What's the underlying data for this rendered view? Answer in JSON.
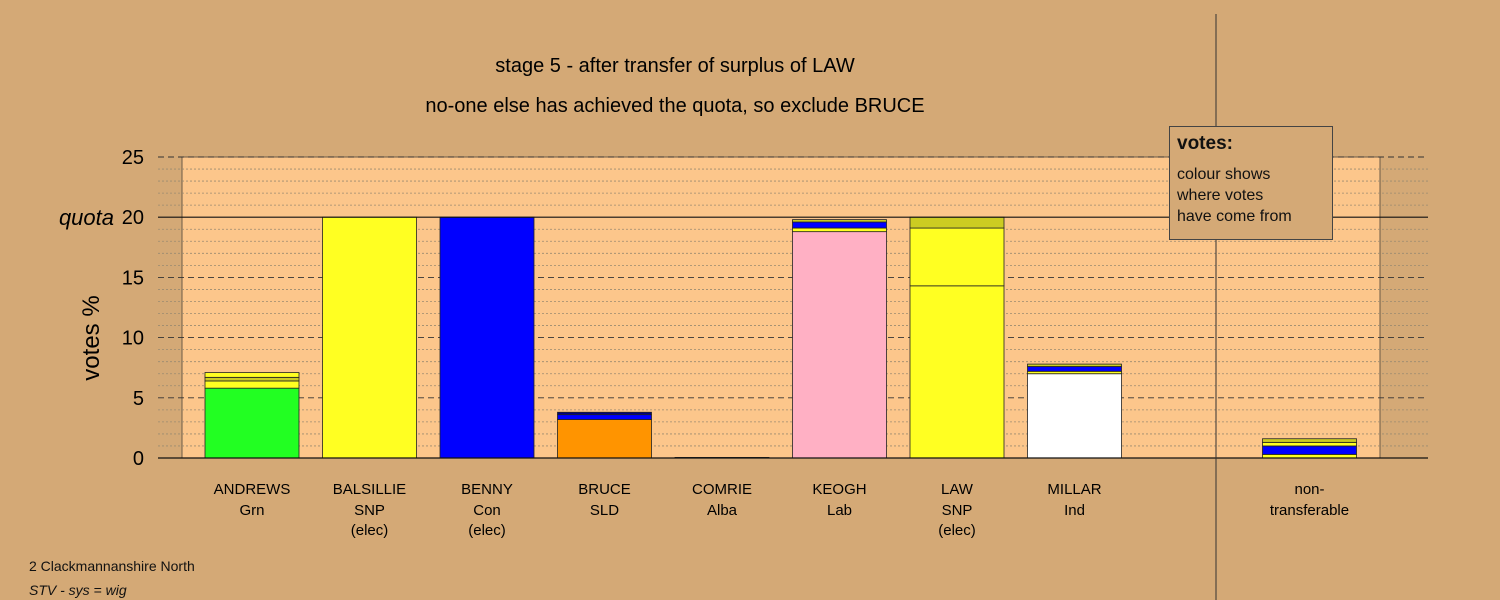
{
  "chart_data": {
    "type": "bar",
    "stacked": true,
    "title": "stage 5 - after transfer of surplus of LAW",
    "subtitle": "no-one else has achieved the quota, so exclude BRUCE",
    "ylabel": "votes %",
    "ylim": [
      0,
      25
    ],
    "yticks": [
      0,
      5,
      10,
      15,
      20,
      25
    ],
    "quota": 20,
    "quota_label": "quota",
    "grid": true,
    "bars": [
      {
        "name": "ANDREWS",
        "party": "Grn",
        "status": "",
        "segments": [
          {
            "value": 5.8,
            "color": "#22ff22"
          },
          {
            "value": 0.6,
            "color": "#ffff22"
          },
          {
            "value": 0.3,
            "color": "#cccc22"
          },
          {
            "value": 0.4,
            "color": "#ffff22"
          }
        ]
      },
      {
        "name": "BALSILLIE",
        "party": "SNP",
        "status": "(elec)",
        "segments": [
          {
            "value": 20,
            "color": "#ffff22"
          }
        ]
      },
      {
        "name": "BENNY",
        "party": "Con",
        "status": "(elec)",
        "segments": [
          {
            "value": 20,
            "color": "#0000ff"
          }
        ]
      },
      {
        "name": "BRUCE",
        "party": "SLD",
        "status": "",
        "segments": [
          {
            "value": 3.2,
            "color": "#ff9400"
          },
          {
            "value": 0.4,
            "color": "#0000ff"
          },
          {
            "value": 0.2,
            "color": "#000080"
          }
        ]
      },
      {
        "name": "COMRIE",
        "party": "Alba",
        "status": "",
        "segments": [
          {
            "value": 0.05,
            "color": "#888888"
          }
        ]
      },
      {
        "name": "KEOGH",
        "party": "Lab",
        "status": "",
        "segments": [
          {
            "value": 18.8,
            "color": "#ffb0c4"
          },
          {
            "value": 0.3,
            "color": "#ffff22"
          },
          {
            "value": 0.5,
            "color": "#0000ff"
          },
          {
            "value": 0.2,
            "color": "#cccc22"
          }
        ]
      },
      {
        "name": "LAW",
        "party": "SNP",
        "status": "(elec)",
        "segments": [
          {
            "value": 14.3,
            "color": "#ffff22"
          },
          {
            "value": 4.8,
            "color": "#ffff22"
          },
          {
            "value": 0.9,
            "color": "#cccc22"
          }
        ]
      },
      {
        "name": "MILLAR",
        "party": "Ind",
        "status": "",
        "segments": [
          {
            "value": 7.0,
            "color": "#ffffff"
          },
          {
            "value": 0.2,
            "color": "#ffff22"
          },
          {
            "value": 0.4,
            "color": "#0000ff"
          },
          {
            "value": 0.2,
            "color": "#cccc22"
          }
        ]
      },
      {
        "name": "non-",
        "party": "transferable",
        "status": "",
        "segments": [
          {
            "value": 0.3,
            "color": "#ffff22"
          },
          {
            "value": 0.7,
            "color": "#0000ff"
          },
          {
            "value": 0.3,
            "color": "#ffff22"
          },
          {
            "value": 0.3,
            "color": "#cccc22"
          }
        ]
      }
    ]
  },
  "legend": {
    "title": "votes:",
    "text": "colour shows\nwhere votes\nhave come from"
  },
  "footer": {
    "line1": "2 Clackmannanshire North",
    "line2": "STV - sys = wig"
  }
}
